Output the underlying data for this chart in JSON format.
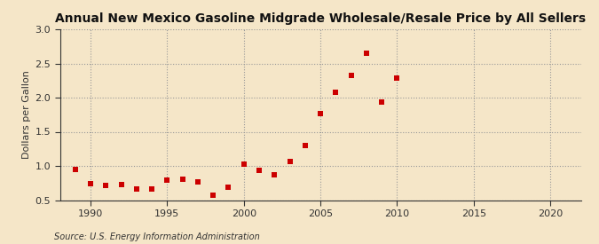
{
  "title": "Annual New Mexico Gasoline Midgrade Wholesale/Resale Price by All Sellers",
  "ylabel": "Dollars per Gallon",
  "source": "Source: U.S. Energy Information Administration",
  "background_color": "#f5e6c8",
  "xlim": [
    1988.0,
    2022.0
  ],
  "ylim": [
    0.5,
    3.0
  ],
  "xticks": [
    1990,
    1995,
    2000,
    2005,
    2010,
    2015,
    2020
  ],
  "yticks": [
    0.5,
    1.0,
    1.5,
    2.0,
    2.5,
    3.0
  ],
  "years": [
    1989,
    1990,
    1991,
    1992,
    1993,
    1994,
    1995,
    1996,
    1997,
    1998,
    1999,
    2000,
    2001,
    2002,
    2003,
    2004,
    2005,
    2006,
    2007,
    2008,
    2009,
    2010
  ],
  "values": [
    0.95,
    0.74,
    0.71,
    0.73,
    0.66,
    0.66,
    0.79,
    0.8,
    0.77,
    0.57,
    0.69,
    1.02,
    0.93,
    0.87,
    1.06,
    1.3,
    1.77,
    2.08,
    2.33,
    2.65,
    1.94,
    2.29
  ],
  "marker_color": "#cc0000",
  "marker_size": 5,
  "grid_color": "#999999",
  "axis_color": "#333333",
  "title_fontsize": 10,
  "label_fontsize": 8,
  "tick_fontsize": 8,
  "source_fontsize": 7
}
